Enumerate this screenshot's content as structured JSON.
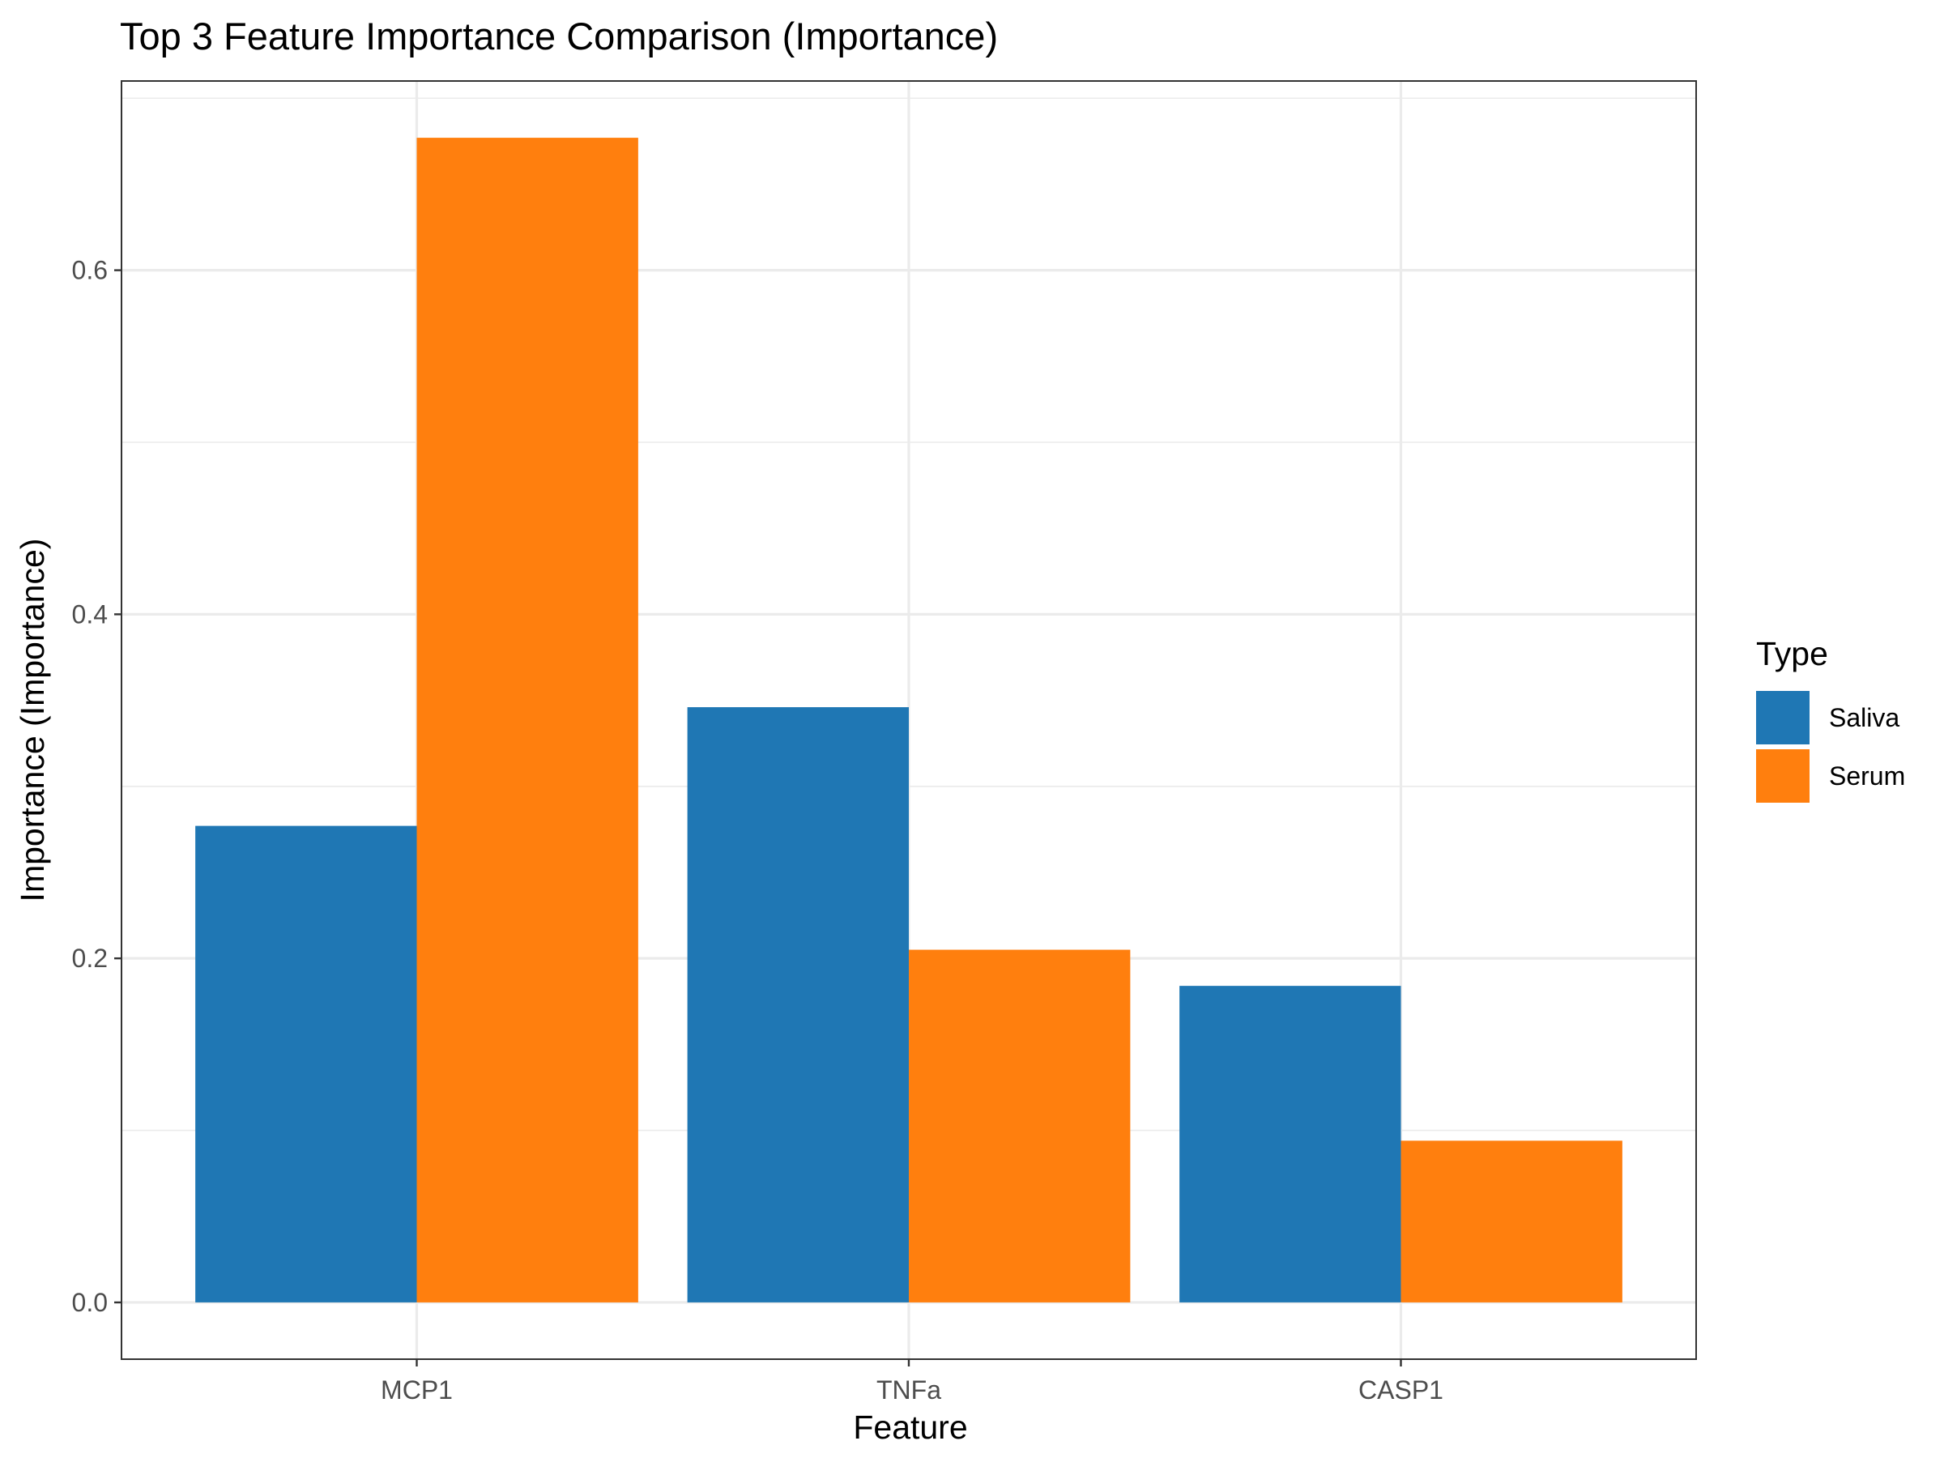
{
  "chart_data": {
    "type": "bar",
    "title": "Top 3 Feature Importance Comparison (Importance)",
    "xlabel": "Feature",
    "ylabel": "Importance (Importance)",
    "categories": [
      "MCP1",
      "TNFa",
      "CASP1"
    ],
    "series": [
      {
        "name": "Saliva",
        "color": "#1f77b4",
        "values": [
          0.277,
          0.346,
          0.184
        ]
      },
      {
        "name": "Serum",
        "color": "#ff7f0e",
        "values": [
          0.677,
          0.205,
          0.094
        ]
      }
    ],
    "ylim": [
      -0.033,
      0.71
    ],
    "yticks": [
      0.0,
      0.2,
      0.4,
      0.6
    ],
    "ytick_labels": [
      "0.0",
      "0.2",
      "0.4",
      "0.6"
    ],
    "legend": {
      "title": "Type",
      "position": "right"
    },
    "grid": true
  }
}
